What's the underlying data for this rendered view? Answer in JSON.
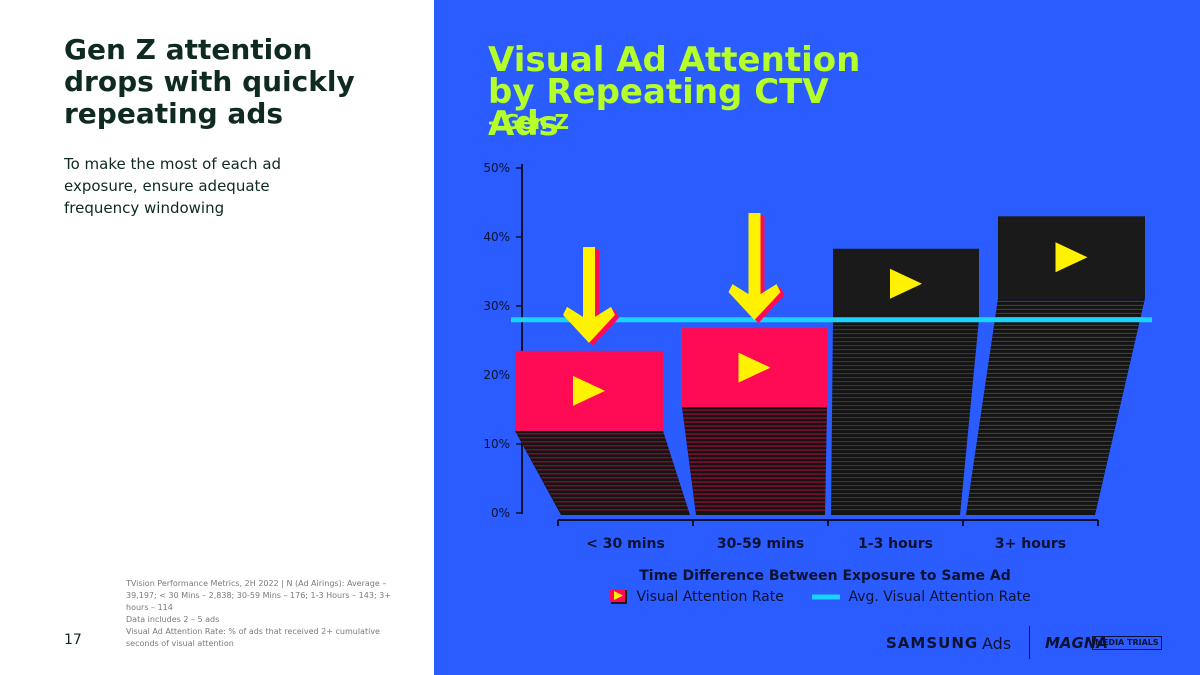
{
  "page": {
    "headline": "Gen Z attention drops with quickly repeating ads",
    "subtext": "To make the most of each ad exposure, ensure adequate frequency windowing",
    "page_number": "17",
    "footnotes": [
      "TVision Performance Metrics, 2H 2022 | N (Ad Airings): Average – 39,197;  < 30 Mins – 2,838;  30-59 Mins – 176;  1-3 Hours – 143;  3+ hours – 114",
      "Data includes 2 – 5 ads",
      "Visual Ad Attention Rate: % of ads that received 2+ cumulative seconds of visual attention"
    ],
    "brand": {
      "samsung": "SAMSUNG",
      "ads": "Ads",
      "magna": "MAGNA",
      "media_trials": "MEDIA TRIALS"
    }
  },
  "colors": {
    "background_blue": "#2b5cff",
    "title_green": "#b5ff2a",
    "bar_pink": "#ff0a54",
    "bar_black": "#1a1a1a",
    "average_line": "#19d4ff",
    "arrow_yellow": "#fff200"
  },
  "chart_data": {
    "type": "bar",
    "title": "Visual Ad Attention by Repeating CTV Ads",
    "subtitle": "- Gen Z",
    "xlabel": "Time Difference Between Exposure to Same Ad",
    "ylabel": "",
    "categories": [
      "< 30 mins",
      "30-59 mins",
      "1-3 hours",
      "3+ hours"
    ],
    "series": [
      {
        "name": "Visual Attention Rate",
        "values": [
          23.5,
          26.8,
          38.3,
          43.0
        ]
      }
    ],
    "average": {
      "name": "Avg. Visual Attention Rate",
      "value": 28.0
    },
    "below_average": [
      "< 30 mins",
      "30-59 mins"
    ],
    "ylim": [
      0,
      50
    ],
    "yticks": [
      "0%",
      "10%",
      "20%",
      "30%",
      "40%",
      "50%"
    ],
    "ytick_values": [
      0,
      10,
      20,
      30,
      40,
      50
    ],
    "grid": false,
    "legend": "bottom",
    "icons": [
      "play-icon",
      "down-arrow-icon"
    ]
  }
}
